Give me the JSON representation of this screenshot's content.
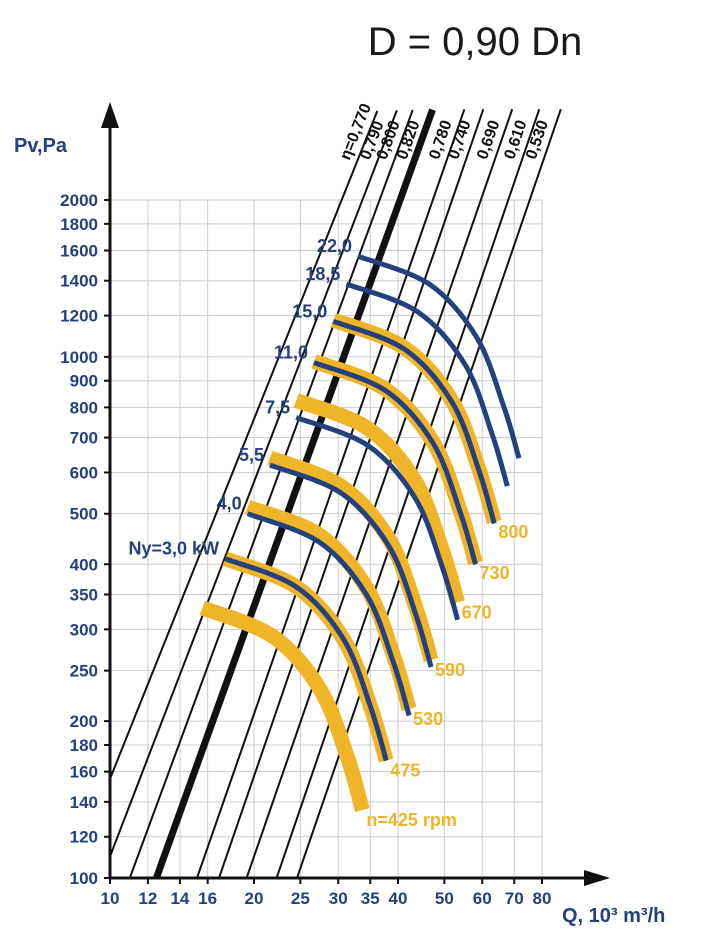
{
  "chart_data": {
    "type": "line",
    "title": "D = 0,90 Dn",
    "ylabel": "Pv,Pa",
    "xlabel": "Q, 10³ m³/h",
    "x_scale": "log",
    "y_scale": "log",
    "xlim": [
      10,
      80
    ],
    "ylim": [
      100,
      2000
    ],
    "grid": true,
    "x_ticks": [
      {
        "value": 10,
        "label": "10"
      },
      {
        "value": 12,
        "label": "12"
      },
      {
        "value": 14,
        "label": "14"
      },
      {
        "value": 16,
        "label": "16"
      },
      {
        "value": 20,
        "label": "20"
      },
      {
        "value": 25,
        "label": "25"
      },
      {
        "value": 30,
        "label": "30"
      },
      {
        "value": 35,
        "label": "35"
      },
      {
        "value": 40,
        "label": "40"
      },
      {
        "value": 50,
        "label": "50"
      },
      {
        "value": 60,
        "label": "60"
      },
      {
        "value": 70,
        "label": "70"
      },
      {
        "value": 80,
        "label": "80"
      }
    ],
    "y_ticks": [
      {
        "value": 100,
        "label": "100"
      },
      {
        "value": 120,
        "label": "120"
      },
      {
        "value": 140,
        "label": "140"
      },
      {
        "value": 160,
        "label": "160"
      },
      {
        "value": 180,
        "label": "180"
      },
      {
        "value": 200,
        "label": "200"
      },
      {
        "value": 250,
        "label": "250"
      },
      {
        "value": 300,
        "label": "300"
      },
      {
        "value": 350,
        "label": "350"
      },
      {
        "value": 400,
        "label": "400"
      },
      {
        "value": 500,
        "label": "500"
      },
      {
        "value": 600,
        "label": "600"
      },
      {
        "value": 700,
        "label": "700"
      },
      {
        "value": 800,
        "label": "800"
      },
      {
        "value": 900,
        "label": "900"
      },
      {
        "value": 1000,
        "label": "1000"
      },
      {
        "value": 1200,
        "label": "1200"
      },
      {
        "value": 1400,
        "label": "1400"
      },
      {
        "value": 1600,
        "label": "1600"
      },
      {
        "value": 1800,
        "label": "1800"
      },
      {
        "value": 2000,
        "label": "2000"
      }
    ],
    "efficiency_lines": [
      {
        "label": "η=0,770",
        "x": [
          10.0,
          30.5
        ],
        "y": [
          155,
          2000
        ],
        "bold": false
      },
      {
        "label": "0,790",
        "x": [
          10.0,
          33.7
        ],
        "y": [
          110,
          2000
        ],
        "bold": false
      },
      {
        "label": "0,800",
        "x": [
          11.0,
          36.6
        ],
        "y": [
          100,
          2000
        ],
        "bold": false
      },
      {
        "label": "0,820",
        "x": [
          12.5,
          40.4
        ],
        "y": [
          100,
          2000
        ],
        "bold": true
      },
      {
        "label": "0,780",
        "x": [
          15.2,
          47.3
        ],
        "y": [
          100,
          2000
        ],
        "bold": false
      },
      {
        "label": "0,740",
        "x": [
          16.9,
          51.9
        ],
        "y": [
          100,
          2000
        ],
        "bold": false
      },
      {
        "label": "0,690",
        "x": [
          19.3,
          59.6
        ],
        "y": [
          100,
          2000
        ],
        "bold": false
      },
      {
        "label": "0,610",
        "x": [
          22.3,
          68.0
        ],
        "y": [
          100,
          2000
        ],
        "bold": false
      },
      {
        "label": "0,530",
        "x": [
          24.6,
          75.4
        ],
        "y": [
          100,
          2000
        ],
        "bold": false
      }
    ],
    "speed_curves": [
      {
        "label": "n=425 rpm",
        "color": "#f0b429",
        "x": [
          15.6,
          22.0,
          27.5,
          31.4,
          33.7
        ],
        "y": [
          330,
          290,
          230,
          170,
          135
        ]
      },
      {
        "label": "475",
        "color": "#f0b429",
        "x": [
          17.4,
          24.5,
          30.8,
          35.1,
          37.8
        ],
        "y": [
          410,
          362,
          287,
          212,
          168
        ]
      },
      {
        "label": "530",
        "color": "#f0b429",
        "x": [
          19.4,
          27.4,
          34.4,
          39.2,
          42.2
        ],
        "y": [
          515,
          455,
          360,
          266,
          211
        ]
      },
      {
        "label": "590",
        "color": "#f0b429",
        "x": [
          21.6,
          30.4,
          38.3,
          43.6,
          46.9
        ],
        "y": [
          640,
          565,
          447,
          330,
          262
        ]
      },
      {
        "label": "670",
        "color": "#f0b429",
        "x": [
          24.5,
          34.6,
          43.5,
          49.5,
          53.3
        ],
        "y": [
          825,
          729,
          577,
          426,
          338
        ]
      },
      {
        "label": "730",
        "color": "#f0b429",
        "x": [
          26.7,
          37.7,
          47.4,
          54.0,
          58.1
        ],
        "y": [
          980,
          866,
          685,
          506,
          402
        ]
      },
      {
        "label": "800",
        "color": "#f0b429",
        "x": [
          29.3,
          41.3,
          51.9,
          59.1,
          63.6
        ],
        "y": [
          1177,
          1040,
          823,
          607,
          482
        ]
      }
    ],
    "power_curves": [
      {
        "label": "Ny=3,0 kW",
        "color": "#24407d",
        "x": [
          17.4,
          24.5,
          30.8,
          35.1,
          37.8
        ],
        "y": [
          410,
          362,
          287,
          212,
          168
        ]
      },
      {
        "label": "4,0",
        "color": "#24407d",
        "x": [
          19.4,
          27.4,
          34.4,
          39.2,
          42.2
        ],
        "y": [
          500,
          441,
          349,
          258,
          205
        ]
      },
      {
        "label": "5,5",
        "color": "#24407d",
        "x": [
          21.6,
          30.4,
          38.3,
          43.6,
          46.9
        ],
        "y": [
          620,
          548,
          433,
          320,
          254
        ]
      },
      {
        "label": "7,5",
        "color": "#24407d",
        "x": [
          24.5,
          34.6,
          43.5,
          49.5,
          53.3
        ],
        "y": [
          765,
          676,
          535,
          395,
          313
        ]
      },
      {
        "label": "11,0",
        "color": "#24407d",
        "x": [
          26.7,
          37.7,
          47.4,
          54.0,
          58.1
        ],
        "y": [
          975,
          861,
          682,
          503,
          400
        ]
      },
      {
        "label": "15,0",
        "color": "#24407d",
        "x": [
          29.3,
          41.3,
          51.9,
          59.1,
          63.6
        ],
        "y": [
          1170,
          1034,
          818,
          604,
          479
        ]
      },
      {
        "label": "18,5",
        "color": "#24407d",
        "x": [
          31.2,
          44.0,
          55.3,
          62.9,
          67.7
        ],
        "y": [
          1380,
          1220,
          965,
          712,
          565
        ]
      },
      {
        "label": "22,0",
        "color": "#24407d",
        "x": [
          33.0,
          46.5,
          58.4,
          66.5,
          71.6
        ],
        "y": [
          1560,
          1379,
          1091,
          805,
          639
        ]
      }
    ]
  }
}
